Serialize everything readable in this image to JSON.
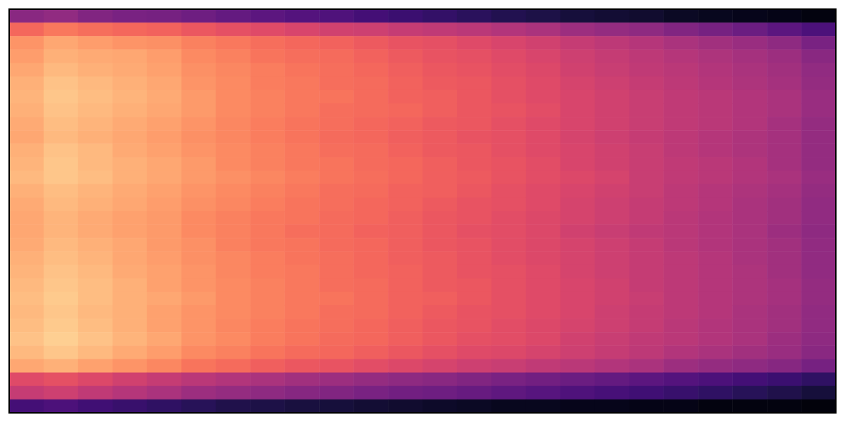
{
  "chart_data": {
    "type": "heatmap",
    "tick_labels": false,
    "values": [
      [
        40,
        42,
        38,
        36,
        35,
        33,
        30,
        28,
        26,
        25,
        22,
        20,
        18,
        16,
        14,
        12,
        10,
        9,
        8,
        6,
        5,
        4,
        3,
        2
      ],
      [
        70,
        74,
        72,
        70,
        69,
        66,
        64,
        62,
        60,
        58,
        57,
        55,
        54,
        52,
        50,
        48,
        45,
        43,
        41,
        38,
        35,
        32,
        28,
        24
      ],
      [
        80,
        84,
        82,
        80,
        79,
        76,
        74,
        72,
        70,
        69,
        67,
        65,
        64,
        62,
        60,
        58,
        55,
        53,
        51,
        48,
        46,
        44,
        41,
        36
      ],
      [
        82,
        86,
        85,
        84,
        82,
        78,
        76,
        73,
        72,
        71,
        69,
        67,
        65,
        64,
        62,
        60,
        57,
        55,
        53,
        51,
        49,
        47,
        45,
        40
      ],
      [
        84,
        88,
        86,
        85,
        83,
        79,
        77,
        75,
        73,
        72,
        70,
        68,
        66,
        65,
        63,
        61,
        58,
        56,
        54,
        52,
        50,
        48,
        46,
        42
      ],
      [
        86,
        90,
        88,
        86,
        84,
        80,
        78,
        75,
        74,
        72,
        71,
        69,
        67,
        66,
        64,
        62,
        59,
        57,
        55,
        53,
        51,
        49,
        47,
        43
      ],
      [
        87,
        91,
        89,
        87,
        85,
        81,
        78,
        76,
        74,
        73,
        71,
        69,
        68,
        66,
        64,
        62,
        60,
        58,
        56,
        54,
        52,
        50,
        48,
        44
      ],
      [
        86,
        90,
        88,
        86,
        84,
        81,
        78,
        76,
        74,
        72,
        71,
        70,
        68,
        66,
        65,
        63,
        60,
        58,
        56,
        54,
        52,
        50,
        48,
        44
      ],
      [
        85,
        89,
        87,
        85,
        83,
        80,
        77,
        75,
        73,
        72,
        70,
        69,
        67,
        66,
        64,
        62,
        60,
        58,
        56,
        54,
        52,
        50,
        47,
        43
      ],
      [
        84,
        88,
        86,
        84,
        82,
        79,
        77,
        75,
        73,
        71,
        70,
        68,
        67,
        65,
        64,
        62,
        59,
        57,
        55,
        53,
        51,
        49,
        47,
        43
      ],
      [
        86,
        90,
        88,
        85,
        83,
        80,
        78,
        76,
        74,
        72,
        71,
        69,
        67,
        66,
        64,
        62,
        60,
        58,
        56,
        53,
        51,
        49,
        47,
        43
      ],
      [
        87,
        91,
        88,
        86,
        84,
        81,
        78,
        76,
        74,
        73,
        71,
        70,
        68,
        66,
        65,
        63,
        60,
        58,
        56,
        54,
        52,
        50,
        47,
        43
      ],
      [
        88,
        91,
        89,
        86,
        84,
        81,
        79,
        77,
        75,
        73,
        72,
        70,
        68,
        67,
        65,
        63,
        61,
        59,
        56,
        54,
        52,
        50,
        48,
        44
      ],
      [
        86,
        89,
        87,
        85,
        83,
        80,
        78,
        76,
        74,
        72,
        71,
        69,
        68,
        66,
        64,
        62,
        60,
        58,
        56,
        53,
        51,
        49,
        47,
        43
      ],
      [
        85,
        88,
        86,
        84,
        82,
        79,
        77,
        75,
        73,
        72,
        70,
        69,
        67,
        65,
        64,
        62,
        59,
        57,
        55,
        53,
        51,
        48,
        46,
        42
      ],
      [
        84,
        87,
        85,
        83,
        81,
        78,
        76,
        74,
        73,
        71,
        70,
        68,
        66,
        65,
        63,
        61,
        59,
        57,
        55,
        52,
        50,
        48,
        46,
        42
      ],
      [
        84,
        87,
        85,
        83,
        81,
        78,
        76,
        74,
        72,
        71,
        69,
        68,
        66,
        64,
        63,
        61,
        58,
        56,
        54,
        52,
        50,
        48,
        45,
        41
      ],
      [
        85,
        88,
        86,
        84,
        81,
        79,
        76,
        74,
        73,
        71,
        70,
        68,
        66,
        65,
        63,
        61,
        59,
        57,
        55,
        52,
        50,
        48,
        46,
        42
      ],
      [
        86,
        89,
        87,
        84,
        82,
        79,
        77,
        75,
        73,
        72,
        70,
        68,
        67,
        65,
        63,
        61,
        59,
        57,
        55,
        53,
        51,
        48,
        46,
        42
      ],
      [
        87,
        90,
        88,
        85,
        83,
        80,
        77,
        75,
        74,
        72,
        70,
        69,
        67,
        65,
        64,
        62,
        59,
        57,
        55,
        53,
        51,
        49,
        46,
        42
      ],
      [
        88,
        91,
        89,
        86,
        83,
        80,
        78,
        76,
        74,
        72,
        71,
        69,
        67,
        66,
        64,
        62,
        60,
        58,
        55,
        53,
        51,
        49,
        47,
        43
      ],
      [
        89,
        92,
        89,
        86,
        84,
        81,
        78,
        76,
        74,
        73,
        71,
        69,
        68,
        66,
        64,
        62,
        60,
        58,
        56,
        53,
        51,
        49,
        47,
        43
      ],
      [
        88,
        91,
        88,
        86,
        83,
        80,
        78,
        76,
        74,
        72,
        71,
        69,
        67,
        65,
        64,
        62,
        60,
        57,
        55,
        53,
        51,
        48,
        46,
        42
      ],
      [
        89,
        92,
        89,
        86,
        83,
        80,
        77,
        75,
        73,
        72,
        70,
        68,
        66,
        65,
        63,
        61,
        59,
        57,
        55,
        52,
        50,
        48,
        46,
        42
      ],
      [
        90,
        93,
        90,
        87,
        84,
        80,
        78,
        75,
        73,
        71,
        70,
        68,
        66,
        64,
        63,
        61,
        58,
        56,
        54,
        52,
        50,
        48,
        45,
        41
      ],
      [
        88,
        91,
        88,
        85,
        82,
        78,
        76,
        73,
        71,
        70,
        68,
        66,
        64,
        62,
        61,
        59,
        57,
        55,
        53,
        50,
        48,
        46,
        44,
        40
      ],
      [
        84,
        86,
        83,
        80,
        77,
        73,
        71,
        68,
        66,
        65,
        63,
        61,
        59,
        57,
        56,
        54,
        52,
        50,
        48,
        45,
        43,
        41,
        39,
        35
      ],
      [
        62,
        64,
        61,
        58,
        55,
        52,
        50,
        48,
        46,
        45,
        43,
        41,
        40,
        38,
        36,
        34,
        32,
        30,
        28,
        26,
        24,
        22,
        20,
        17
      ],
      [
        55,
        57,
        54,
        51,
        48,
        45,
        43,
        41,
        39,
        38,
        36,
        34,
        33,
        31,
        29,
        27,
        25,
        23,
        21,
        19,
        17,
        15,
        13,
        10
      ],
      [
        22,
        24,
        21,
        19,
        17,
        15,
        13,
        12,
        11,
        10,
        9,
        8,
        7,
        6,
        5,
        5,
        4,
        4,
        3,
        3,
        2,
        2,
        2,
        1
      ]
    ]
  }
}
